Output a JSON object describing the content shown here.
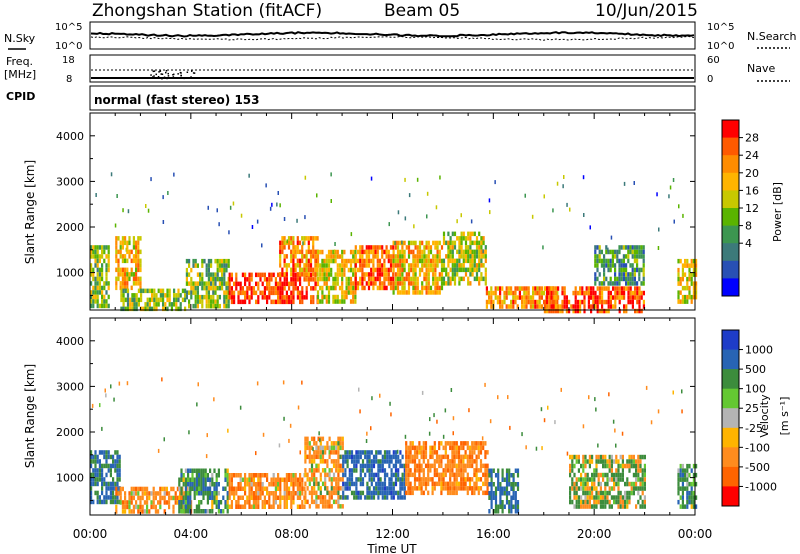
{
  "header": {
    "station": "Zhongshan Station (fitACF)",
    "beam": "Beam 05",
    "date": "10/Jun/2015"
  },
  "strip": {
    "nsky_label": "N.Sky",
    "nsearch_label": "N.Search",
    "noise_left_ticks": [
      "10^5",
      "10^0"
    ],
    "noise_right_ticks": [
      "10^5",
      "10^0"
    ],
    "freq_label": "Freq.",
    "freq_unit": "[MHz]",
    "freq_ticks": [
      "18",
      "8"
    ],
    "nave_label": "Nave",
    "nave_ticks": [
      "60",
      "0"
    ],
    "cpid_label": "CPID",
    "cpid_text": "normal (fast stereo) 153"
  },
  "axes": {
    "ylabel": "Slant Range [km]",
    "xlabel": "Time UT",
    "yticks": [
      "4000",
      "3000",
      "2000",
      "1000"
    ],
    "xticks": [
      "00:00",
      "04:00",
      "08:00",
      "12:00",
      "16:00",
      "20:00",
      "00:00"
    ]
  },
  "colorbars": {
    "power": {
      "label": "Power [dB]",
      "ticks": [
        "28",
        "24",
        "20",
        "16",
        "12",
        "8",
        "4"
      ],
      "colors": [
        "#ff0000",
        "#ff5a00",
        "#ff8c00",
        "#ffb400",
        "#c8c800",
        "#5ab400",
        "#3c9650",
        "#3c7a7a",
        "#2850b4",
        "#0000ff"
      ]
    },
    "velocity": {
      "label": "Velocity",
      "unit": "[m s⁻¹]",
      "ticks": [
        "1000",
        "500",
        "100",
        "25",
        "-25",
        "-100",
        "-500",
        "-1000"
      ],
      "colors": [
        "#1e3cc8",
        "#2864b4",
        "#3c8c3c",
        "#64c832",
        "#b4b4b4",
        "#ffb400",
        "#ff8c1e",
        "#ff6400",
        "#ff0000"
      ]
    }
  },
  "chart_data": [
    {
      "type": "heatmap",
      "title": "Power",
      "xlabel": "Time UT",
      "ylabel": "Slant Range [km]",
      "xlim": [
        0,
        24
      ],
      "ylim": [
        180,
        4500
      ],
      "colorbar_label": "Power [dB]",
      "colorbar_range": [
        0,
        30
      ],
      "regions": [
        {
          "t0": 0.0,
          "t1": 0.7,
          "r0": 300,
          "r1": 1600,
          "value": 14
        },
        {
          "t0": 1.0,
          "t1": 2.0,
          "r0": 700,
          "r1": 1800,
          "value": 20
        },
        {
          "t0": 1.2,
          "t1": 3.8,
          "r0": 250,
          "r1": 650,
          "value": 14
        },
        {
          "t0": 3.8,
          "t1": 5.5,
          "r0": 300,
          "r1": 1300,
          "value": 14
        },
        {
          "t0": 5.5,
          "t1": 9.0,
          "r0": 400,
          "r1": 1000,
          "value": 27
        },
        {
          "t0": 7.5,
          "t1": 9.0,
          "r0": 1000,
          "r1": 1800,
          "value": 22
        },
        {
          "t0": 9.0,
          "t1": 10.5,
          "r0": 350,
          "r1": 1500,
          "value": 18
        },
        {
          "t0": 10.5,
          "t1": 12.0,
          "r0": 700,
          "r1": 1600,
          "value": 24
        },
        {
          "t0": 12.0,
          "t1": 14.0,
          "r0": 600,
          "r1": 1700,
          "value": 20
        },
        {
          "t0": 14.0,
          "t1": 15.7,
          "r0": 800,
          "r1": 1900,
          "value": 16
        },
        {
          "t0": 15.7,
          "t1": 18.5,
          "r0": 250,
          "r1": 700,
          "value": 22
        },
        {
          "t0": 18.0,
          "t1": 22.0,
          "r0": 200,
          "r1": 700,
          "value": 26
        },
        {
          "t0": 20.0,
          "t1": 22.0,
          "r0": 800,
          "r1": 1600,
          "value": 10
        },
        {
          "t0": 23.3,
          "t1": 24.0,
          "r0": 350,
          "r1": 1300,
          "value": 18
        }
      ]
    },
    {
      "type": "heatmap",
      "title": "Velocity",
      "xlabel": "Time UT",
      "ylabel": "Slant Range [km]",
      "xlim": [
        0,
        24
      ],
      "ylim": [
        180,
        4500
      ],
      "colorbar_label": "Velocity [m s-1]",
      "colorbar_range": [
        -1000,
        1000
      ],
      "regions": [
        {
          "t0": 0.0,
          "t1": 1.2,
          "r0": 500,
          "r1": 1600,
          "value": 600
        },
        {
          "t0": 1.0,
          "t1": 4.0,
          "r0": 250,
          "r1": 800,
          "value": -300
        },
        {
          "t0": 3.5,
          "t1": 5.5,
          "r0": 300,
          "r1": 1200,
          "value": 300
        },
        {
          "t0": 5.5,
          "t1": 8.5,
          "r0": 400,
          "r1": 1100,
          "value": -300
        },
        {
          "t0": 8.5,
          "t1": 10.0,
          "r0": 400,
          "r1": 1900,
          "value": -200
        },
        {
          "t0": 10.0,
          "t1": 12.5,
          "r0": 600,
          "r1": 1600,
          "value": 700
        },
        {
          "t0": 12.5,
          "t1": 15.8,
          "r0": 700,
          "r1": 1800,
          "value": -400
        },
        {
          "t0": 15.8,
          "t1": 17.0,
          "r0": 250,
          "r1": 1200,
          "value": 600
        },
        {
          "t0": 19.0,
          "t1": 22.0,
          "r0": 400,
          "r1": 1500,
          "value": 80
        },
        {
          "t0": 23.3,
          "t1": 24.0,
          "r0": 400,
          "r1": 1300,
          "value": 300
        }
      ]
    }
  ]
}
